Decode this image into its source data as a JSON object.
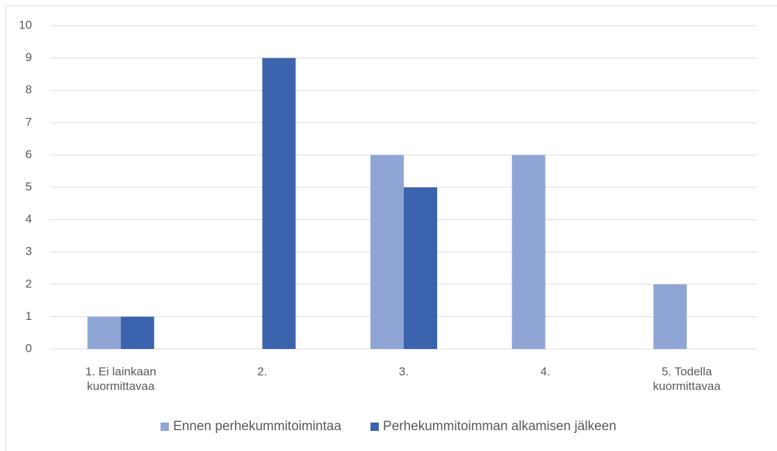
{
  "chart_data": {
    "type": "bar",
    "categories": [
      "1. Ei lainkaan kuormittavaa",
      "2.",
      "3.",
      "4.",
      "5. Todella kuormittavaa"
    ],
    "series": [
      {
        "name": "Ennen perhekummitoimintaa",
        "color": "#8fa5d6",
        "values": [
          1,
          0,
          6,
          6,
          2
        ]
      },
      {
        "name": "Perhekummitoimman alkamisen jälkeen",
        "color": "#3c64ae",
        "values": [
          1,
          9,
          5,
          0,
          0
        ]
      }
    ],
    "ylim": [
      0,
      10
    ],
    "yticks": [
      0,
      1,
      2,
      3,
      4,
      5,
      6,
      7,
      8,
      9,
      10
    ],
    "grid": true,
    "legend": "bottom"
  }
}
